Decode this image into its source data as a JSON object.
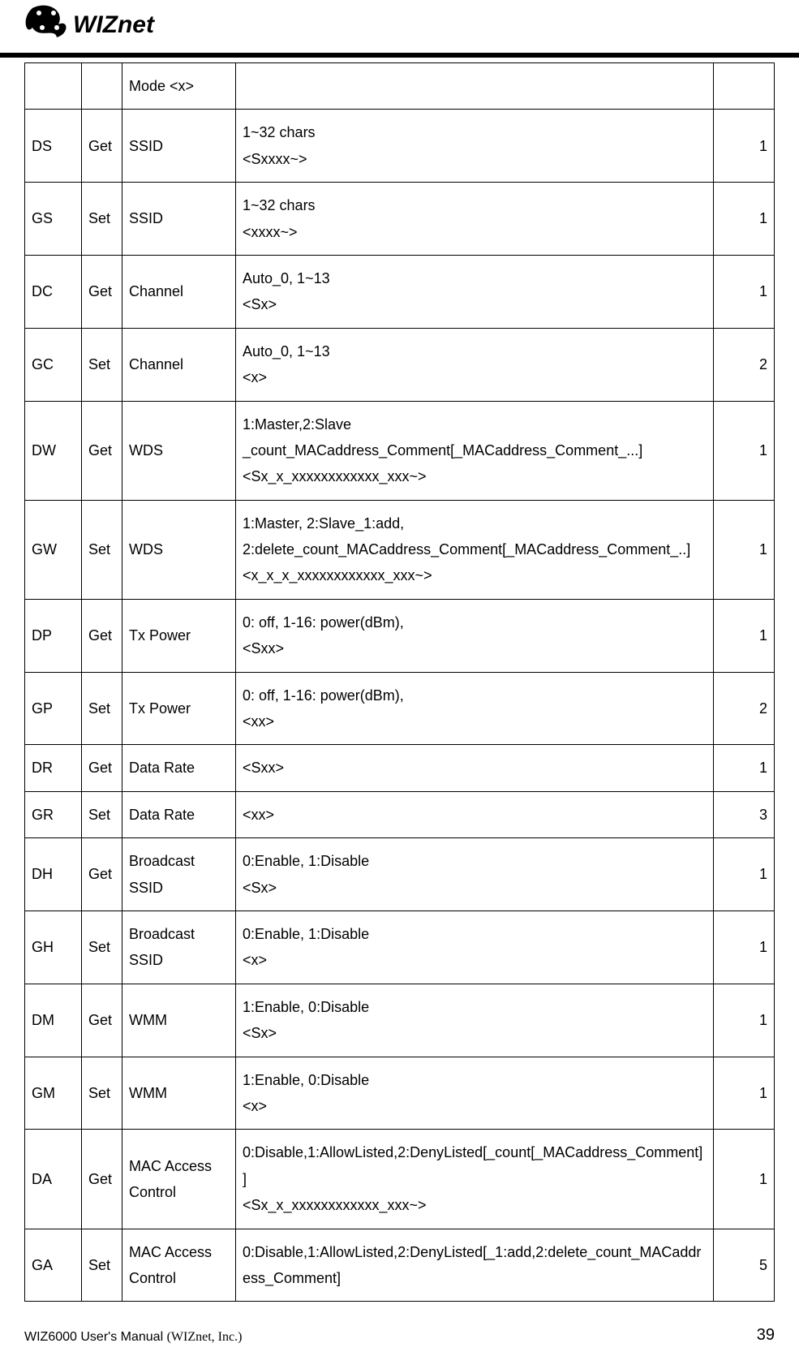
{
  "rows": [
    {
      "c1": "",
      "c2": "",
      "c3": "Mode <x>",
      "c4": "",
      "c5": ""
    },
    {
      "c1": "DS",
      "c2": "Get",
      "c3": "SSID",
      "c4": "1~32 chars\n<Sxxxx~>",
      "c5": "1"
    },
    {
      "c1": "GS",
      "c2": "Set",
      "c3": "SSID",
      "c4": "1~32 chars\n<xxxx~>",
      "c5": "1"
    },
    {
      "c1": "DC",
      "c2": "Get",
      "c3": "Channel",
      "c4": "Auto_0, 1~13\n<Sx>",
      "c5": "1"
    },
    {
      "c1": "GC",
      "c2": "Set",
      "c3": "Channel",
      "c4": "Auto_0, 1~13\n<x>",
      "c5": "2"
    },
    {
      "c1": "DW",
      "c2": "Get",
      "c3": "WDS",
      "c4": "1:Master,2:Slave\n_count_MACaddress_Comment[_MACaddress_Comment_...]\n<Sx_x_xxxxxxxxxxxx_xxx~>",
      "c5": "1"
    },
    {
      "c1": "GW",
      "c2": "Set",
      "c3": "WDS",
      "c4": "1:Master, 2:Slave_1:add,\n2:delete_count_MACaddress_Comment[_MACaddress_Comment_..]\n<x_x_x_xxxxxxxxxxxx_xxx~>",
      "c5": "1"
    },
    {
      "c1": "DP",
      "c2": "Get",
      "c3": "Tx Power",
      "c4": "0: off, 1-16: power(dBm),\n<Sxx>",
      "c5": "1"
    },
    {
      "c1": "GP",
      "c2": "Set",
      "c3": "Tx Power",
      "c4": "0: off, 1-16: power(dBm),\n<xx>",
      "c5": "2"
    },
    {
      "c1": "DR",
      "c2": "Get",
      "c3": "Data Rate",
      "c4": "<Sxx>",
      "c5": "1"
    },
    {
      "c1": "GR",
      "c2": "Set",
      "c3": "Data Rate",
      "c4": "<xx>",
      "c5": "3"
    },
    {
      "c1": "DH",
      "c2": "Get",
      "c3": "Broadcast SSID",
      "c4": "0:Enable, 1:Disable\n<Sx>",
      "c5": "1"
    },
    {
      "c1": "GH",
      "c2": "Set",
      "c3": "Broadcast SSID",
      "c4": "0:Enable, 1:Disable\n<x>",
      "c5": "1"
    },
    {
      "c1": "DM",
      "c2": "Get",
      "c3": "WMM",
      "c4": "1:Enable, 0:Disable\n<Sx>",
      "c5": "1"
    },
    {
      "c1": "GM",
      "c2": "Set",
      "c3": "WMM",
      "c4": "1:Enable, 0:Disable\n<x>",
      "c5": "1"
    },
    {
      "c1": "DA",
      "c2": "Get",
      "c3": "MAC Access Control",
      "c4": "0:Disable,1:AllowListed,2:DenyListed[_count[_MACaddress_Comment]]\n<Sx_x_xxxxxxxxxxxx_xxx~>",
      "c5": "1"
    },
    {
      "c1": "GA",
      "c2": "Set",
      "c3": "MAC Access Control",
      "c4": "0:Disable,1:AllowListed,2:DenyListed[_1:add,2:delete_count_MACaddress_Comment]",
      "c5": "5"
    }
  ],
  "footer": {
    "manual": "WIZ6000 User's Manual",
    "company": "(WIZnet, Inc.)",
    "page": "39"
  },
  "logo": {
    "brand": "WIZnet"
  }
}
